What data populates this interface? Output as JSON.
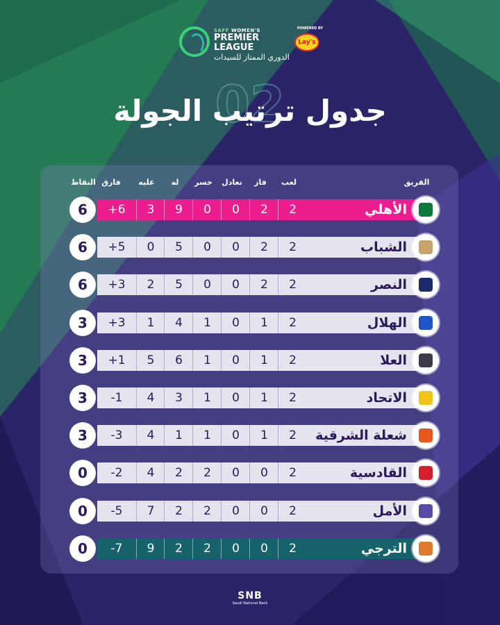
{
  "header": {
    "saff": "SAFF",
    "womens": "WOMEN'S",
    "league_en": "PREMIER LEAGUE",
    "league_ar": "الدوري الممتاز للسيدات",
    "powered_by": "POWERED BY",
    "sponsor": "Lay's",
    "round_number": "02",
    "title": "جدول ترتيب الجولة"
  },
  "columns": {
    "team": "الفريق",
    "played": "لعب",
    "won": "فاز",
    "drawn": "تعادل",
    "lost": "خسر",
    "gf": "له",
    "ga": "عليه",
    "gd": "فارق",
    "points": "النقاط"
  },
  "rows": [
    {
      "team": "الأهلي",
      "played": "2",
      "won": "2",
      "drawn": "0",
      "lost": "0",
      "gf": "9",
      "ga": "3",
      "gd": "+6",
      "points": "6",
      "style": "hl",
      "crest_color": "#0a7a3a"
    },
    {
      "team": "الشباب",
      "played": "2",
      "won": "2",
      "drawn": "0",
      "lost": "0",
      "gf": "5",
      "ga": "0",
      "gd": "+5",
      "points": "6",
      "style": "",
      "crest_color": "#c9a36a"
    },
    {
      "team": "النصر",
      "played": "2",
      "won": "2",
      "drawn": "0",
      "lost": "0",
      "gf": "5",
      "ga": "2",
      "gd": "+3",
      "points": "6",
      "style": "",
      "crest_color": "#1b2a6b"
    },
    {
      "team": "الهلال",
      "played": "2",
      "won": "1",
      "drawn": "0",
      "lost": "1",
      "gf": "4",
      "ga": "1",
      "gd": "+3",
      "points": "3",
      "style": "",
      "crest_color": "#1e56c9"
    },
    {
      "team": "العلا",
      "played": "2",
      "won": "1",
      "drawn": "0",
      "lost": "1",
      "gf": "6",
      "ga": "5",
      "gd": "+1",
      "points": "3",
      "style": "",
      "crest_color": "#3a3a4a"
    },
    {
      "team": "الاتحاد",
      "played": "2",
      "won": "1",
      "drawn": "0",
      "lost": "1",
      "gf": "3",
      "ga": "4",
      "gd": "-1",
      "points": "3",
      "style": "",
      "crest_color": "#f2c418"
    },
    {
      "team": "شعلة الشرقية",
      "played": "2",
      "won": "1",
      "drawn": "0",
      "lost": "1",
      "gf": "1",
      "ga": "4",
      "gd": "-3",
      "points": "3",
      "style": "",
      "crest_color": "#e8571c"
    },
    {
      "team": "القادسية",
      "played": "2",
      "won": "0",
      "drawn": "0",
      "lost": "2",
      "gf": "2",
      "ga": "4",
      "gd": "-2",
      "points": "0",
      "style": "",
      "crest_color": "#d3202c"
    },
    {
      "team": "الأمل",
      "played": "2",
      "won": "0",
      "drawn": "0",
      "lost": "2",
      "gf": "2",
      "ga": "7",
      "gd": "-5",
      "points": "0",
      "style": "",
      "crest_color": "#5a4aa8"
    },
    {
      "team": "الترجي",
      "played": "2",
      "won": "0",
      "drawn": "0",
      "lost": "2",
      "gf": "2",
      "ga": "9",
      "gd": "-7",
      "points": "0",
      "style": "tl",
      "crest_color": "#e07a2a"
    }
  ],
  "footer": {
    "brand": "SNB",
    "subtitle": "Saudi National Bank"
  }
}
